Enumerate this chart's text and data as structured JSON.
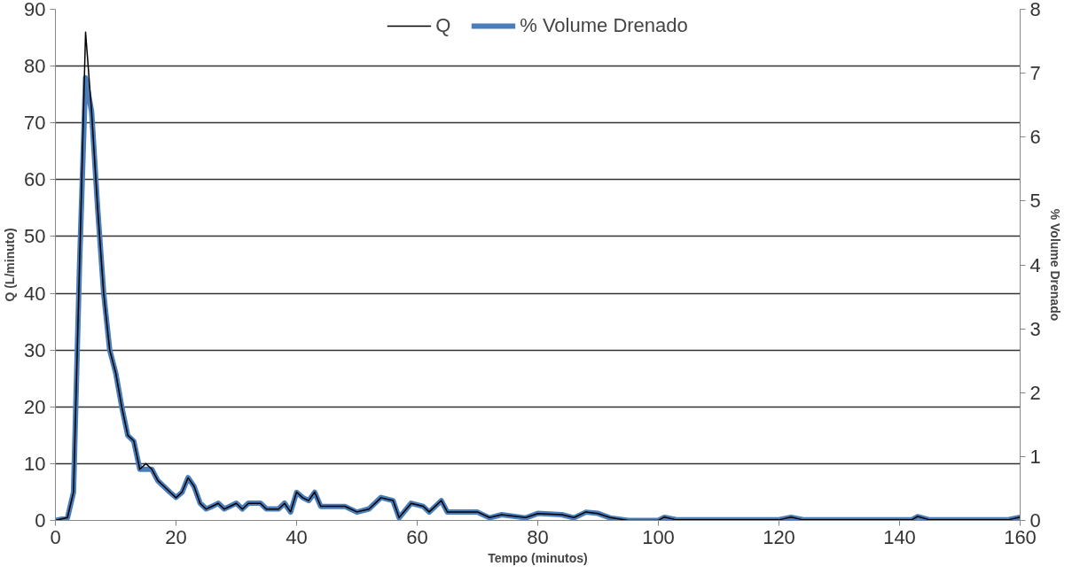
{
  "chart_data": {
    "type": "line",
    "xlabel": "Tempo (minutos)",
    "ylabel": "Q (L/minuto)",
    "y2label": "% Volume Drenado",
    "x": [
      0,
      2,
      3,
      4,
      5,
      6,
      7,
      8,
      9,
      10,
      11,
      12,
      13,
      14,
      15,
      16,
      17,
      18,
      19,
      20,
      21,
      22,
      23,
      24,
      25,
      26,
      27,
      28,
      30,
      31,
      32,
      34,
      35,
      37,
      38,
      39,
      40,
      41,
      42,
      43,
      44,
      48,
      50,
      52,
      54,
      56,
      57,
      59,
      61,
      62,
      64,
      65,
      70,
      72,
      74,
      78,
      80,
      84,
      86,
      88,
      90,
      92,
      95,
      100,
      101,
      103,
      120,
      122,
      124,
      142,
      143,
      145,
      158,
      160
    ],
    "series": [
      {
        "name": "Q",
        "color": "#000000",
        "values": [
          0,
          0.5,
          5,
          45,
          86,
          72,
          55,
          40,
          30,
          26,
          20,
          15,
          14,
          9,
          10,
          9,
          7,
          6,
          5,
          4,
          5,
          7.5,
          6,
          3,
          2,
          2.5,
          3,
          2,
          3,
          2,
          3,
          3,
          2,
          2,
          3,
          1.5,
          5,
          4,
          3.5,
          5,
          2.5,
          2.5,
          1.5,
          2,
          4,
          3.5,
          0.5,
          3,
          2.5,
          1.5,
          3.5,
          1.5,
          1.5,
          0.5,
          1,
          0.5,
          1.2,
          1,
          0.5,
          1.5,
          1.2,
          0.5,
          0,
          0,
          0.6,
          0.1,
          0.1,
          0.6,
          0.1,
          0.1,
          0.7,
          0.1,
          0.1,
          0.6
        ]
      },
      {
        "name": "% Volume Drenado",
        "color": "#4a7ebb",
        "axis": "y2",
        "values": [
          0,
          0.04,
          0.44,
          4,
          6.93,
          6.4,
          4.89,
          3.56,
          2.67,
          2.31,
          1.78,
          1.33,
          1.24,
          0.8,
          0.8,
          0.8,
          0.62,
          0.53,
          0.44,
          0.36,
          0.44,
          0.67,
          0.53,
          0.27,
          0.18,
          0.22,
          0.27,
          0.18,
          0.27,
          0.18,
          0.27,
          0.27,
          0.18,
          0.18,
          0.27,
          0.13,
          0.44,
          0.36,
          0.31,
          0.44,
          0.22,
          0.22,
          0.13,
          0.18,
          0.36,
          0.31,
          0.04,
          0.27,
          0.22,
          0.13,
          0.31,
          0.13,
          0.13,
          0.04,
          0.09,
          0.04,
          0.11,
          0.09,
          0.04,
          0.13,
          0.11,
          0.04,
          0,
          0,
          0.05,
          0.01,
          0.01,
          0.05,
          0.01,
          0.01,
          0.06,
          0.01,
          0.01,
          0.05
        ]
      }
    ],
    "xlim": [
      0,
      160
    ],
    "xticks": [
      0,
      20,
      40,
      60,
      80,
      100,
      120,
      140,
      160
    ],
    "ylim": [
      0,
      90
    ],
    "yticks": [
      0,
      10,
      20,
      30,
      40,
      50,
      60,
      70,
      80,
      90
    ],
    "y2lim": [
      0,
      8
    ],
    "y2ticks": [
      0,
      1,
      2,
      3,
      4,
      5,
      6,
      7,
      8
    ],
    "grid": "y",
    "legend": "top",
    "marker": "none",
    "line_style": "solid"
  }
}
